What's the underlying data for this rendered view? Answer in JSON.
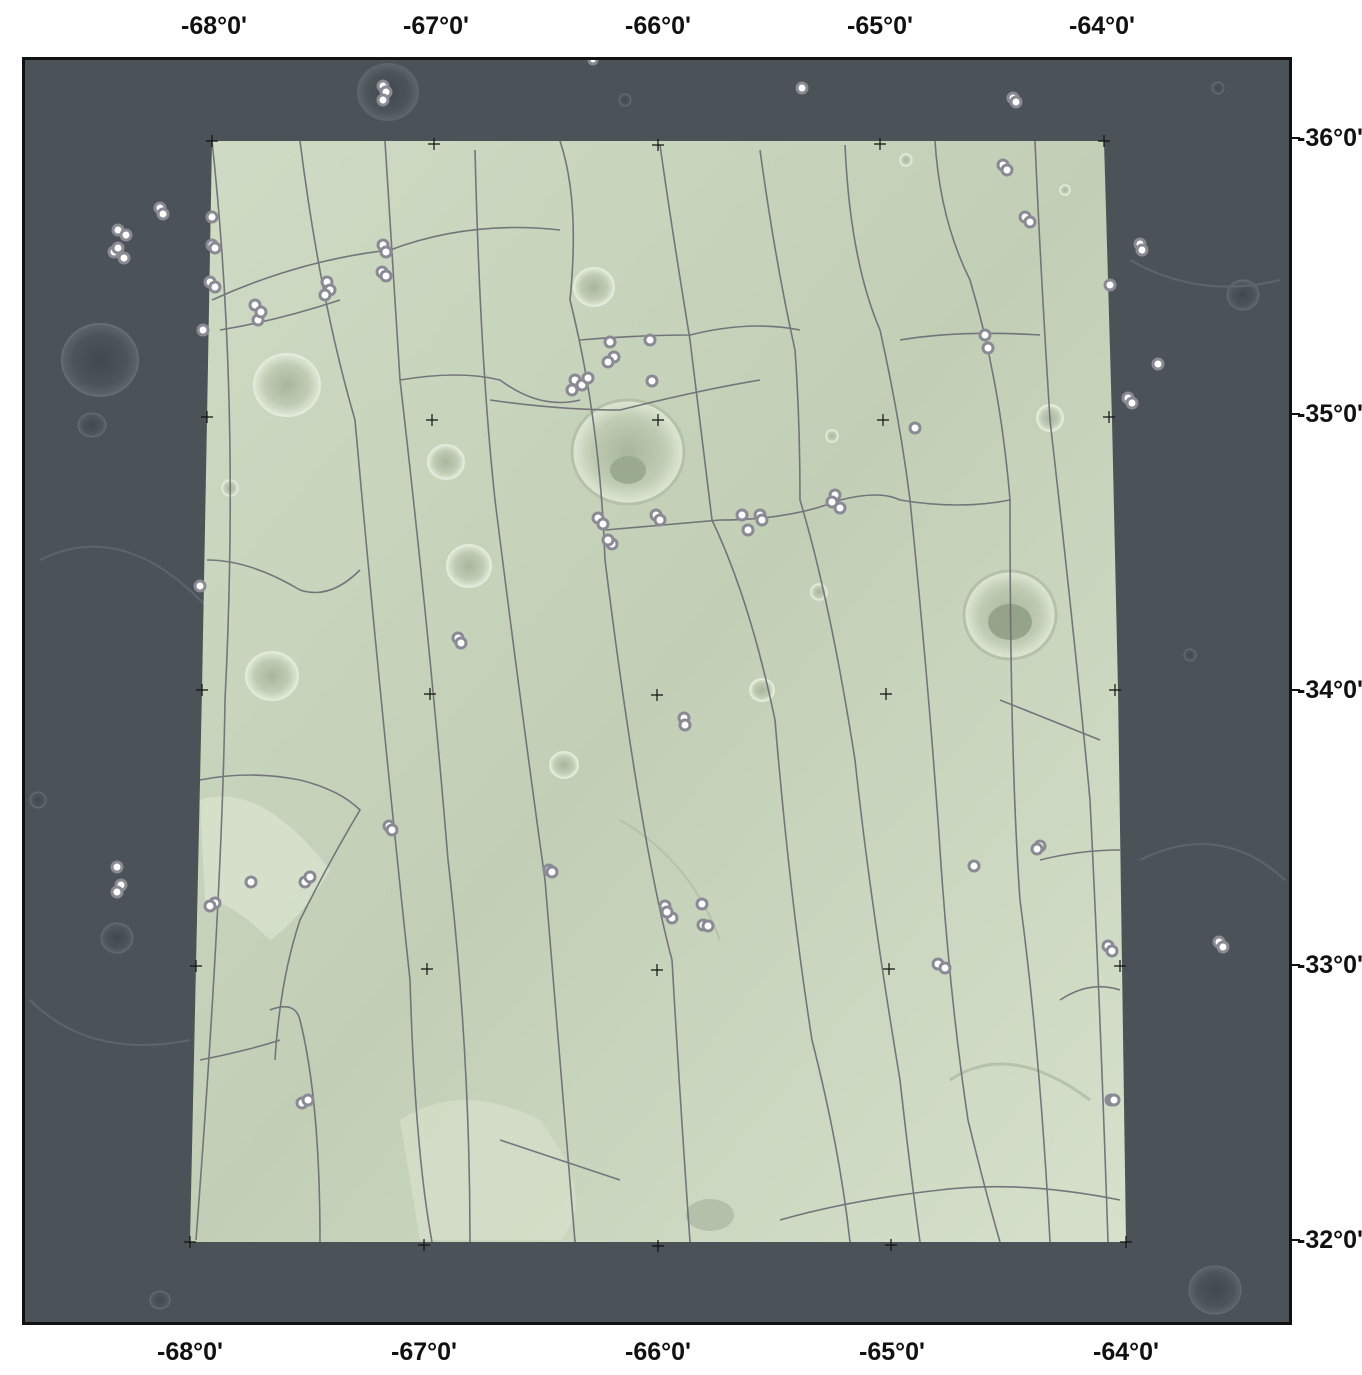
{
  "map": {
    "top_lon_labels": [
      "-68°0'",
      "-67°0'",
      "-66°0'",
      "-65°0'",
      "-64°0'"
    ],
    "bottom_lon_labels": [
      "-68°0'",
      "-67°0'",
      "-66°0'",
      "-65°0'",
      "-64°0'"
    ],
    "right_lat_labels": [
      "-36°0'",
      "-35°0'",
      "-34°0'",
      "-33°0'",
      "-32°0'"
    ],
    "colors": {
      "frame": "#111111",
      "basemap_dark": "#4a5257",
      "study_area_fill": "#c9d6bd",
      "boundary_lines": "#6b6b73",
      "sample_points": "#8a8a94",
      "graticule_cross": "#111111"
    },
    "layers": [
      "basemap-hillshade",
      "study-area-polygon",
      "unit-boundaries",
      "sample-points",
      "graticule-crosses"
    ]
  }
}
